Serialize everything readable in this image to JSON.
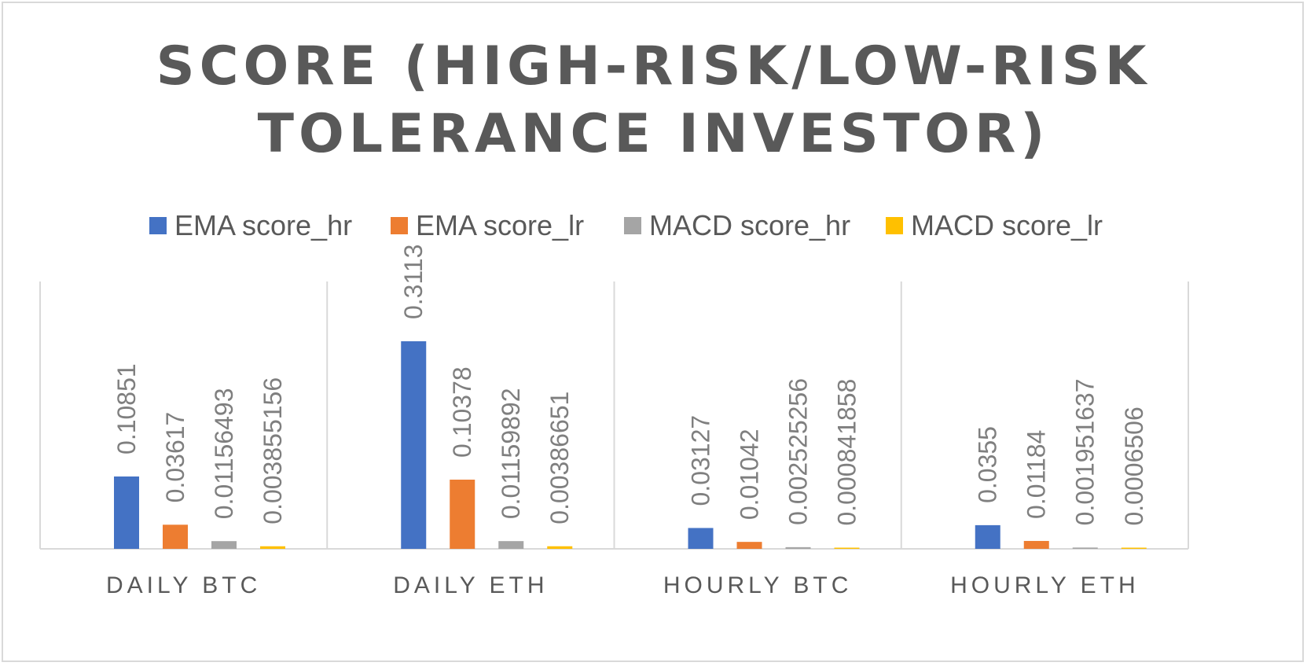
{
  "chart_data": {
    "type": "bar",
    "title_lines": [
      "SCORE (HIGH-RISK/LOW-RISK",
      "TOLERANCE INVESTOR)"
    ],
    "categories": [
      "DAILY BTC",
      "DAILY ETH",
      "HOURLY BTC",
      "HOURLY ETH"
    ],
    "series": [
      {
        "name": "EMA score_hr",
        "color": "#4472c4",
        "values": [
          0.10851,
          0.3113,
          0.03127,
          0.0355
        ],
        "labels": [
          "0.10851",
          "0.3113",
          "0.03127",
          "0.0355"
        ]
      },
      {
        "name": "EMA score_lr",
        "color": "#ed7d31",
        "values": [
          0.03617,
          0.10378,
          0.01042,
          0.01184
        ],
        "labels": [
          "0.03617",
          "0.10378",
          "0.01042",
          "0.01184"
        ]
      },
      {
        "name": "MACD score_hr",
        "color": "#a5a5a5",
        "values": [
          0.01156493,
          0.01159892,
          0.002525256,
          0.001951637
        ],
        "labels": [
          "0.01156493",
          "0.01159892",
          "0.002525256",
          "0.001951637"
        ]
      },
      {
        "name": "MACD score_lr",
        "color": "#ffc000",
        "values": [
          0.003855156,
          0.00386651,
          0.000841858,
          0.0006506
        ],
        "labels": [
          "0.003855156",
          "0.00386651",
          "0.000841858",
          "0.0006506"
        ]
      }
    ],
    "xlabel": "",
    "ylabel": "",
    "ylim": [
      0,
      0.4
    ],
    "grid": false,
    "legend": "top-center"
  }
}
